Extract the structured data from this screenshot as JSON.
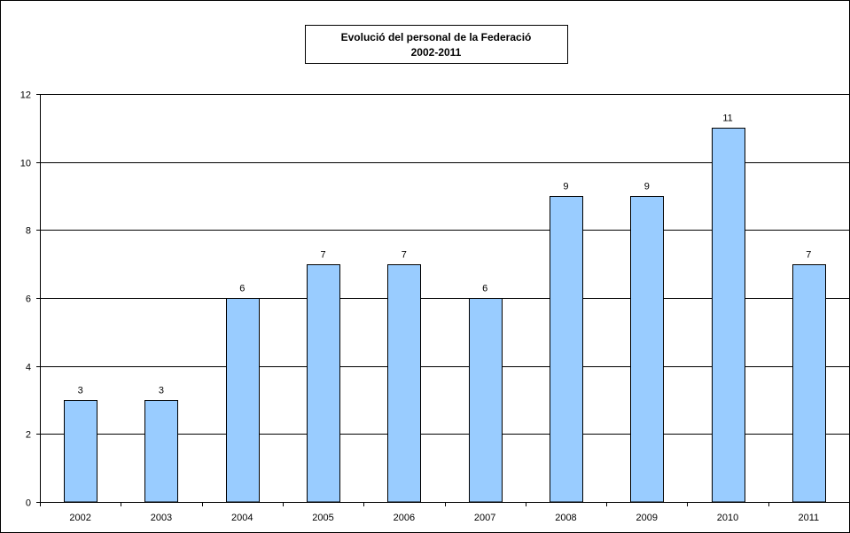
{
  "chart_data": {
    "type": "bar",
    "title": "Evolució del personal de la Federació",
    "subtitle": "2002-2011",
    "categories": [
      "2002",
      "2003",
      "2004",
      "2005",
      "2006",
      "2007",
      "2008",
      "2009",
      "2010",
      "2011"
    ],
    "values": [
      3,
      3,
      6,
      7,
      7,
      6,
      9,
      9,
      11,
      7
    ],
    "xlabel": "",
    "ylabel": "",
    "ylim": [
      0,
      12
    ],
    "yticks": [
      0,
      2,
      4,
      6,
      8,
      10,
      12
    ],
    "grid": true,
    "legend": "none",
    "bar_color": "#99ccff",
    "bar_outline_color": "#000000",
    "background_color": "#ffffff"
  }
}
